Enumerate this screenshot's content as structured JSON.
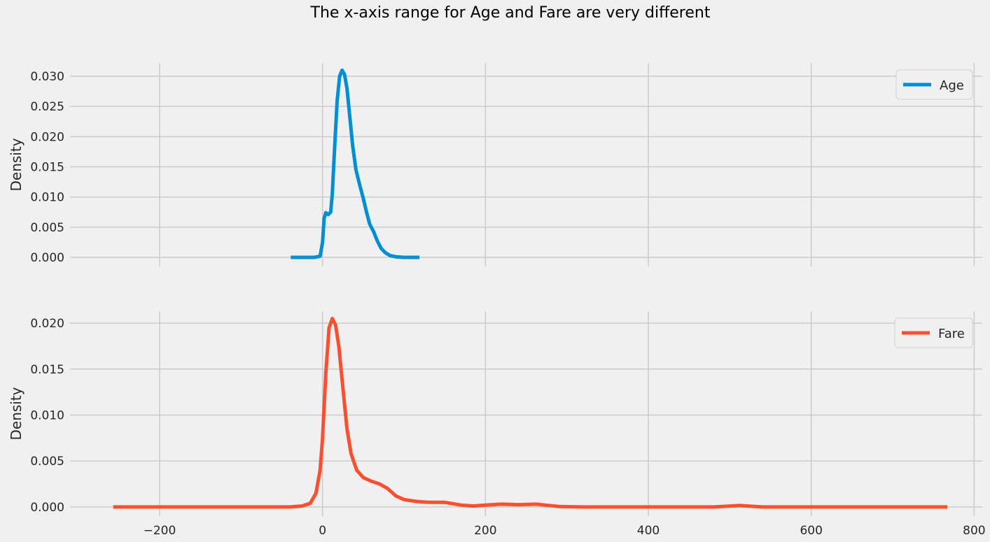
{
  "chart_data": [
    {
      "type": "line",
      "title": "The x-axis range for Age and Fare are very different",
      "ylabel": "Density",
      "xlabel": "",
      "xlim": [
        -310,
        810
      ],
      "ylim": [
        -0.0015,
        0.0322
      ],
      "yticks": [
        "0.000",
        "0.005",
        "0.010",
        "0.015",
        "0.020",
        "0.025",
        "0.030"
      ],
      "ytick_values": [
        0,
        0.005,
        0.01,
        0.015,
        0.02,
        0.025,
        0.03
      ],
      "grid": true,
      "legend_position": "top-right",
      "series": [
        {
          "name": "Age",
          "color": "#008fd5",
          "points": [
            [
              -39,
              0.0
            ],
            [
              -10,
              0.0
            ],
            [
              -3,
              0.0002
            ],
            [
              0,
              0.0025
            ],
            [
              2,
              0.0065
            ],
            [
              4,
              0.0074
            ],
            [
              7,
              0.0071
            ],
            [
              10,
              0.0075
            ],
            [
              12,
              0.0105
            ],
            [
              15,
              0.0185
            ],
            [
              18,
              0.026
            ],
            [
              21,
              0.03
            ],
            [
              24,
              0.031
            ],
            [
              27,
              0.0303
            ],
            [
              30,
              0.028
            ],
            [
              33,
              0.024
            ],
            [
              37,
              0.0185
            ],
            [
              41,
              0.0145
            ],
            [
              46,
              0.0118
            ],
            [
              50,
              0.0098
            ],
            [
              54,
              0.0075
            ],
            [
              58,
              0.0055
            ],
            [
              63,
              0.0042
            ],
            [
              67,
              0.0028
            ],
            [
              72,
              0.0015
            ],
            [
              77,
              0.0008
            ],
            [
              83,
              0.0003
            ],
            [
              90,
              0.0001
            ],
            [
              100,
              0.0
            ],
            [
              119,
              0.0
            ]
          ]
        },
        {
          "name": "Fare",
          "color": "#fc4f30",
          "points": [
            [
              -257,
              0.0
            ],
            [
              -100,
              0.0
            ],
            [
              -40,
              0.0
            ],
            [
              -25,
              0.0001
            ],
            [
              -15,
              0.0004
            ],
            [
              -8,
              0.0015
            ],
            [
              -3,
              0.004
            ],
            [
              0,
              0.0075
            ],
            [
              4,
              0.0145
            ],
            [
              8,
              0.0195
            ],
            [
              12,
              0.0205
            ],
            [
              16,
              0.0198
            ],
            [
              20,
              0.0175
            ],
            [
              25,
              0.013
            ],
            [
              30,
              0.0085
            ],
            [
              35,
              0.0058
            ],
            [
              42,
              0.004
            ],
            [
              50,
              0.0032
            ],
            [
              60,
              0.0028
            ],
            [
              70,
              0.0025
            ],
            [
              80,
              0.002
            ],
            [
              90,
              0.0012
            ],
            [
              100,
              0.0008
            ],
            [
              115,
              0.0006
            ],
            [
              130,
              0.0005
            ],
            [
              150,
              0.0005
            ],
            [
              170,
              0.0002
            ],
            [
              185,
              0.0001
            ],
            [
              200,
              0.0002
            ],
            [
              220,
              0.0003
            ],
            [
              240,
              0.00025
            ],
            [
              262,
              0.0003
            ],
            [
              290,
              5e-05
            ],
            [
              320,
              0.0
            ],
            [
              450,
              0.0
            ],
            [
              480,
              0.0
            ],
            [
              512,
              0.00015
            ],
            [
              540,
              0.0
            ],
            [
              600,
              0.0
            ],
            [
              767,
              0.0
            ]
          ]
        }
      ]
    }
  ],
  "xticks": [
    -200,
    0,
    200,
    400,
    600,
    800
  ],
  "xtick_labels": [
    "−200",
    "0",
    "200",
    "400",
    "600",
    "800"
  ],
  "fare_ylim": [
    -0.001,
    0.0213
  ],
  "fare_yticks": [
    "0.000",
    "0.005",
    "0.010",
    "0.015",
    "0.020"
  ],
  "fare_ytick_values": [
    0,
    0.005,
    0.01,
    0.015,
    0.02
  ]
}
